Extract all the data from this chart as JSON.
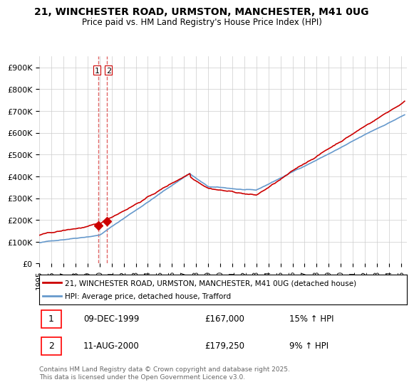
{
  "title": "21, WINCHESTER ROAD, URMSTON, MANCHESTER, M41 0UG",
  "subtitle": "Price paid vs. HM Land Registry's House Price Index (HPI)",
  "legend_label_red": "21, WINCHESTER ROAD, URMSTON, MANCHESTER, M41 0UG (detached house)",
  "legend_label_blue": "HPI: Average price, detached house, Trafford",
  "transaction_1_label": "09-DEC-1999",
  "transaction_1_price": "£167,000",
  "transaction_1_hpi": "15% ↑ HPI",
  "transaction_2_label": "11-AUG-2000",
  "transaction_2_price": "£179,250",
  "transaction_2_hpi": "9% ↑ HPI",
  "footer": "Contains HM Land Registry data © Crown copyright and database right 2025.\nThis data is licensed under the Open Government Licence v3.0.",
  "red_color": "#cc0000",
  "blue_color": "#6699cc",
  "background_color": "#ffffff",
  "grid_color": "#cccccc",
  "ylim": [
    0,
    950000
  ],
  "yticks": [
    0,
    100000,
    200000,
    300000,
    400000,
    500000,
    600000,
    700000,
    800000,
    900000
  ],
  "ytick_labels": [
    "£0",
    "£100K",
    "£200K",
    "£300K",
    "£400K",
    "£500K",
    "£600K",
    "£700K",
    "£800K",
    "£900K"
  ],
  "xlim_start": 1995.0,
  "xlim_end": 2025.5,
  "xtick_years": [
    1995,
    1996,
    1997,
    1998,
    1999,
    2000,
    2001,
    2002,
    2003,
    2004,
    2005,
    2006,
    2007,
    2008,
    2009,
    2010,
    2011,
    2012,
    2013,
    2014,
    2015,
    2016,
    2017,
    2018,
    2019,
    2020,
    2021,
    2022,
    2023,
    2024,
    2025
  ]
}
